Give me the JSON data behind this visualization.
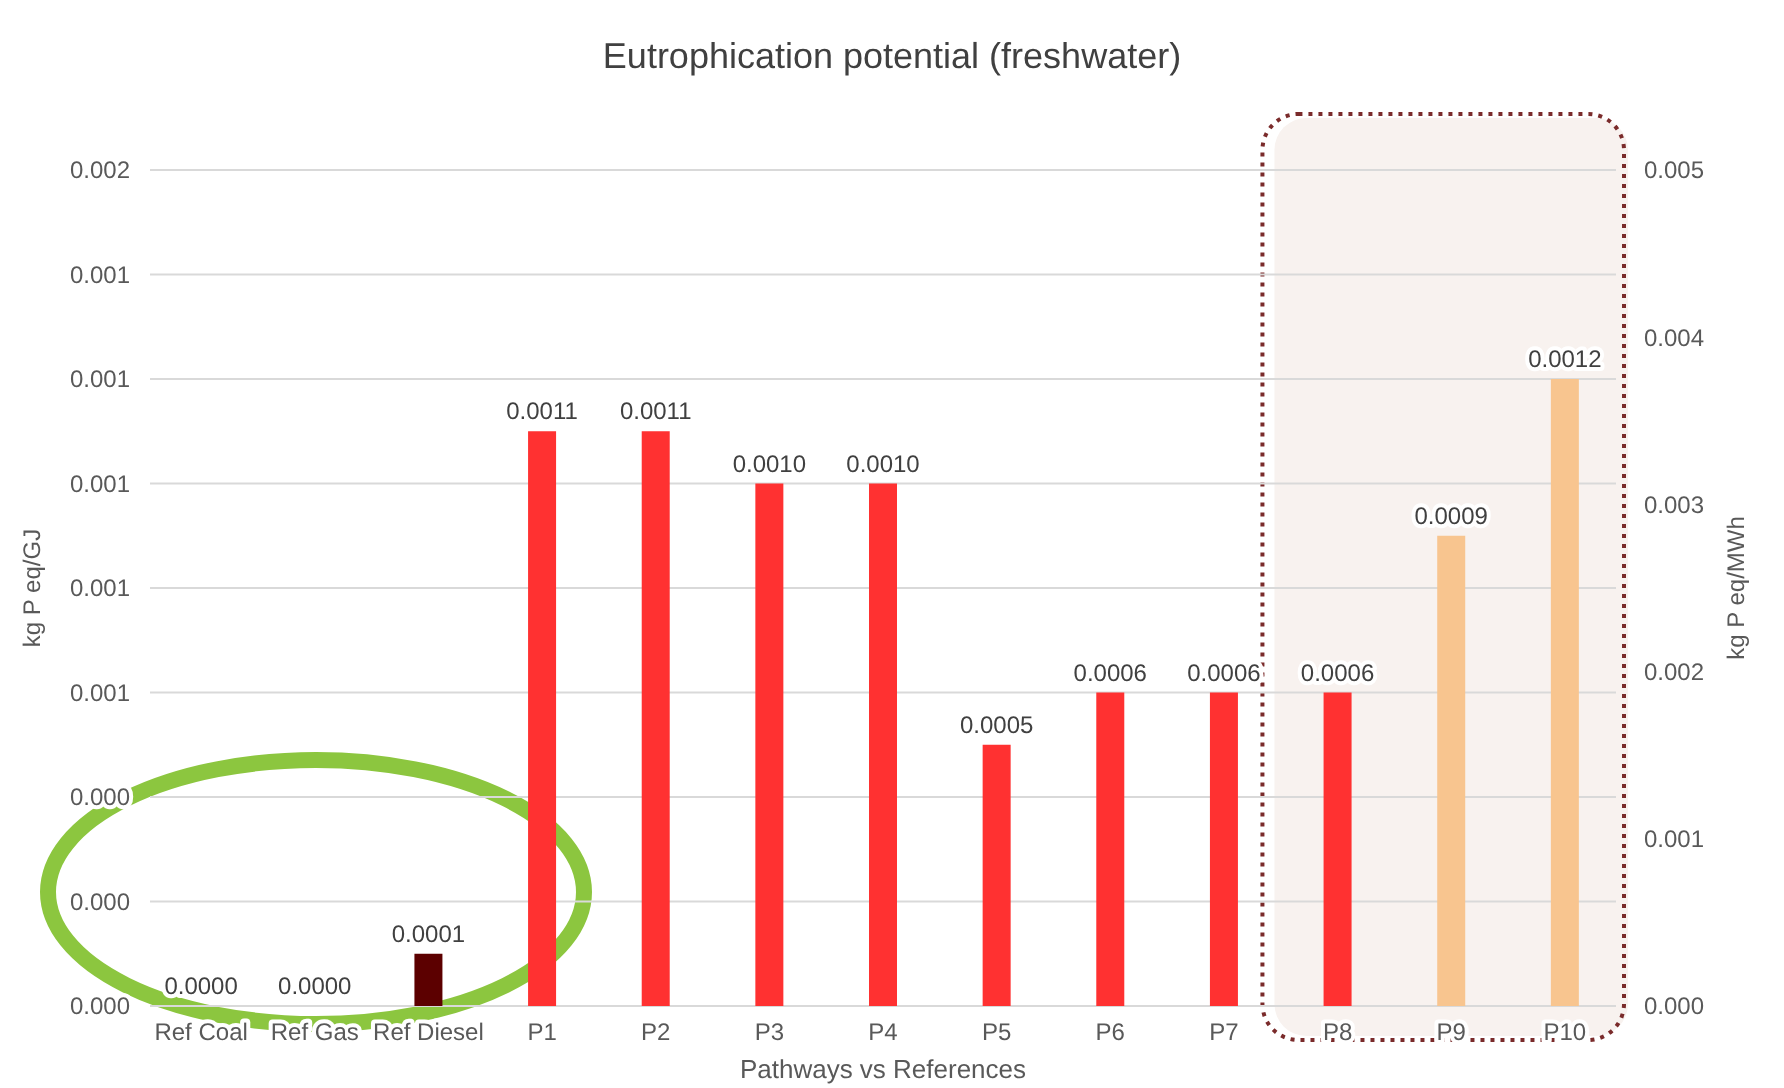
{
  "chart_data": {
    "type": "bar",
    "title": "Eutrophication potential (freshwater)",
    "xlabel": "Pathways vs References",
    "ylabel": "kg P eq/GJ",
    "y2label": "kg P eq/MWh",
    "categories": [
      "Ref Coal",
      "Ref Gas",
      "Ref Diesel",
      "P1",
      "P2",
      "P3",
      "P4",
      "P5",
      "P6",
      "P7",
      "P8",
      "P9",
      "P10"
    ],
    "values": [
      0.0,
      0.0,
      0.0001,
      0.0011,
      0.0011,
      0.001,
      0.001,
      0.0005,
      0.0006,
      0.0006,
      0.0006,
      0.0009,
      0.0012
    ],
    "colors": [
      "#5c0000",
      "#5c0000",
      "#5c0000",
      "#ff3131",
      "#ff3131",
      "#ff3131",
      "#ff3131",
      "#ff3131",
      "#ff3131",
      "#ff3131",
      "#ff3131",
      "#f8c58f",
      "#f8c58f"
    ],
    "value_labels": [
      "0.0000",
      "0.0000",
      "0.0001",
      "0.0011",
      "0.0011",
      "0.0010",
      "0.0010",
      "0.0005",
      "0.0006",
      "0.0006",
      "0.0006",
      "0.0009",
      "0.0012"
    ],
    "bands": [
      {
        "axis": "x",
        "from": "P8",
        "to": "P10",
        "color": "#f8f2ef"
      }
    ],
    "grid": "y",
    "ylim": [
      0,
      0.0016
    ],
    "yticks": [
      {
        "value": 0,
        "label": "0.000"
      },
      {
        "value": 0.0002,
        "label": "0.000"
      },
      {
        "value": 0.0004,
        "label": "0.000"
      },
      {
        "value": 0.0006,
        "label": "0.001"
      },
      {
        "value": 0.0008,
        "label": "0.001"
      },
      {
        "value": 0.001,
        "label": "0.001"
      },
      {
        "value": 0.0012,
        "label": "0.001"
      },
      {
        "value": 0.0014,
        "label": "0.001"
      },
      {
        "value": 0.0016,
        "label": "0.002"
      }
    ],
    "y2lim": [
      0,
      0.005
    ],
    "y2ticks": [
      {
        "value": 0,
        "label": "0.000"
      },
      {
        "value": 0.001,
        "label": "0.001"
      },
      {
        "value": 0.002,
        "label": "0.002"
      },
      {
        "value": 0.003,
        "label": "0.003"
      },
      {
        "value": 0.004,
        "label": "0.004"
      },
      {
        "value": 0.005,
        "label": "0.005"
      }
    ]
  }
}
